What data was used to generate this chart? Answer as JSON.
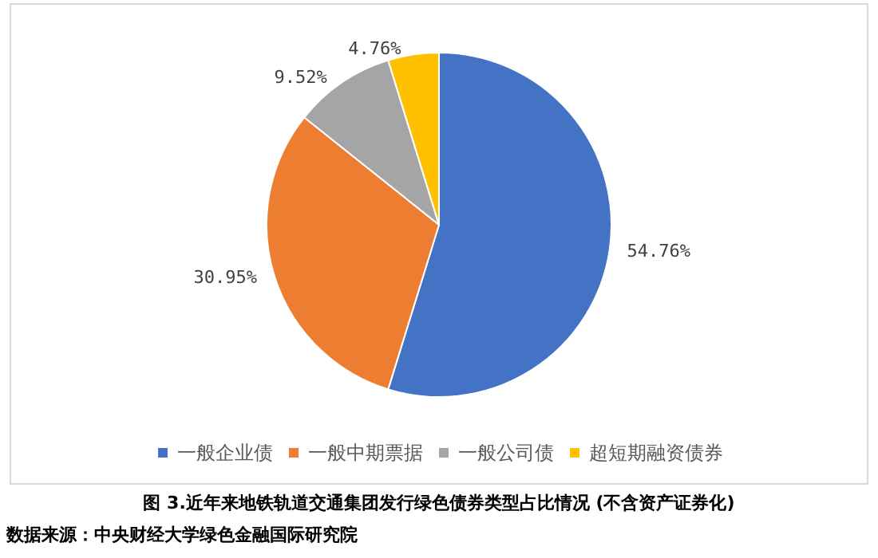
{
  "chart_data": {
    "type": "pie",
    "title": "图 3.近年来地铁轨道交通集团发行绿色债券类型占比情况 (不含资产证券化)",
    "annotations": [
      "数据来源：中央财经大学绿色金融国际研究院"
    ],
    "categories": [
      "一般企业债",
      "一般中期票据",
      "一般公司债",
      "超短期融资债券"
    ],
    "values": [
      54.76,
      30.95,
      9.52,
      4.76
    ],
    "colors": [
      "#4472c4",
      "#ed7d31",
      "#a5a5a5",
      "#ffc000"
    ],
    "value_labels": [
      "54.76%",
      "30.95%",
      "9.52%",
      "4.76%"
    ],
    "legend": "bottom"
  }
}
